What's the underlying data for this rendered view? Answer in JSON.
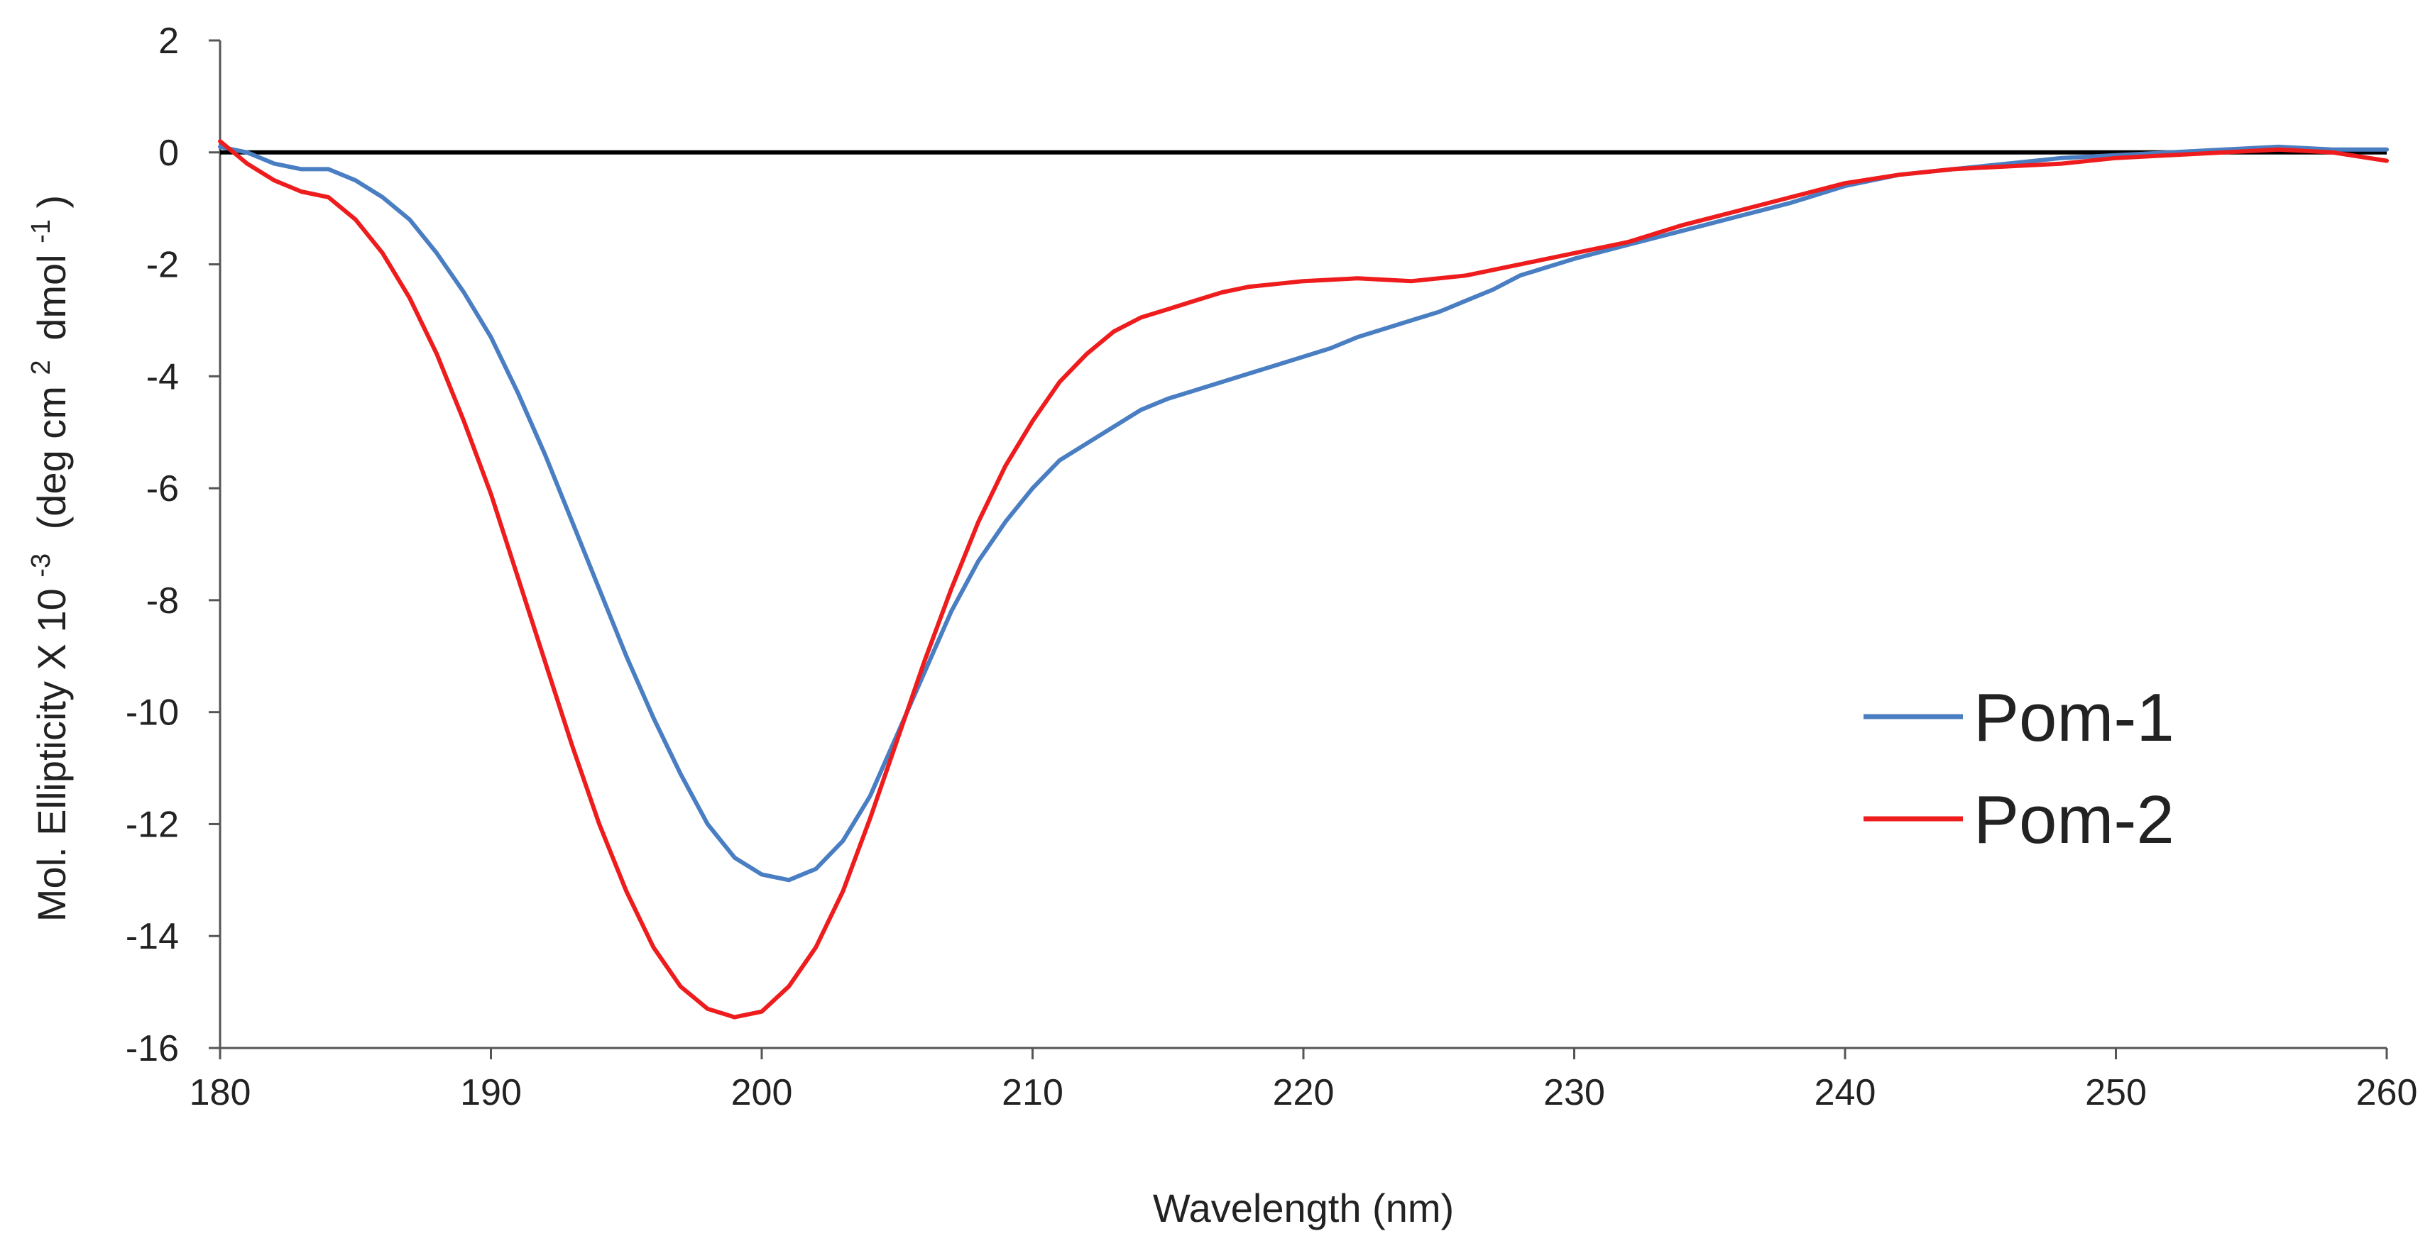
{
  "chart_data": {
    "type": "line",
    "title": "",
    "xlabel": "Wavelength (nm)",
    "ylabel": {
      "main": "Mol. Ellipticity X 10",
      "exp": "-3",
      "units_open": "(deg cm",
      "units_exp1": "2",
      "units_mid": "dmol",
      "units_exp2": "-1",
      "units_close": ")"
    },
    "xlim": [
      180,
      260
    ],
    "ylim": [
      -16,
      2
    ],
    "x_ticks": [
      180,
      190,
      200,
      210,
      220,
      230,
      240,
      250,
      260
    ],
    "y_ticks": [
      2,
      0,
      -2,
      -4,
      -6,
      -8,
      -10,
      -12,
      -14,
      -16
    ],
    "zero_line": true,
    "grid": false,
    "legend_position": "right-lower",
    "series": [
      {
        "name": "Pom-1",
        "color": "#4a7ec2",
        "points": [
          [
            180,
            0.1
          ],
          [
            181,
            0.0
          ],
          [
            182,
            -0.2
          ],
          [
            183,
            -0.3
          ],
          [
            184,
            -0.3
          ],
          [
            185,
            -0.5
          ],
          [
            186,
            -0.8
          ],
          [
            187,
            -1.2
          ],
          [
            188,
            -1.8
          ],
          [
            189,
            -2.5
          ],
          [
            190,
            -3.3
          ],
          [
            191,
            -4.3
          ],
          [
            192,
            -5.4
          ],
          [
            193,
            -6.6
          ],
          [
            194,
            -7.8
          ],
          [
            195,
            -9.0
          ],
          [
            196,
            -10.1
          ],
          [
            197,
            -11.1
          ],
          [
            198,
            -12.0
          ],
          [
            199,
            -12.6
          ],
          [
            200,
            -12.9
          ],
          [
            201,
            -13.0
          ],
          [
            202,
            -12.8
          ],
          [
            203,
            -12.3
          ],
          [
            204,
            -11.5
          ],
          [
            205,
            -10.4
          ],
          [
            206,
            -9.3
          ],
          [
            207,
            -8.2
          ],
          [
            208,
            -7.3
          ],
          [
            209,
            -6.6
          ],
          [
            210,
            -6.0
          ],
          [
            211,
            -5.5
          ],
          [
            212,
            -5.2
          ],
          [
            213,
            -4.9
          ],
          [
            214,
            -4.6
          ],
          [
            215,
            -4.4
          ],
          [
            216,
            -4.25
          ],
          [
            217,
            -4.1
          ],
          [
            218,
            -3.95
          ],
          [
            219,
            -3.8
          ],
          [
            220,
            -3.65
          ],
          [
            221,
            -3.5
          ],
          [
            222,
            -3.3
          ],
          [
            223,
            -3.15
          ],
          [
            224,
            -3.0
          ],
          [
            225,
            -2.85
          ],
          [
            226,
            -2.65
          ],
          [
            227,
            -2.45
          ],
          [
            228,
            -2.2
          ],
          [
            229,
            -2.05
          ],
          [
            230,
            -1.9
          ],
          [
            232,
            -1.65
          ],
          [
            234,
            -1.4
          ],
          [
            236,
            -1.15
          ],
          [
            238,
            -0.9
          ],
          [
            240,
            -0.6
          ],
          [
            242,
            -0.4
          ],
          [
            244,
            -0.3
          ],
          [
            246,
            -0.2
          ],
          [
            248,
            -0.1
          ],
          [
            250,
            -0.05
          ],
          [
            252,
            0.0
          ],
          [
            254,
            0.05
          ],
          [
            256,
            0.1
          ],
          [
            258,
            0.05
          ],
          [
            260,
            0.05
          ]
        ]
      },
      {
        "name": "Pom-2",
        "color": "#ee1c1c",
        "points": [
          [
            180,
            0.2
          ],
          [
            181,
            -0.2
          ],
          [
            182,
            -0.5
          ],
          [
            183,
            -0.7
          ],
          [
            184,
            -0.8
          ],
          [
            185,
            -1.2
          ],
          [
            186,
            -1.8
          ],
          [
            187,
            -2.6
          ],
          [
            188,
            -3.6
          ],
          [
            189,
            -4.8
          ],
          [
            190,
            -6.1
          ],
          [
            191,
            -7.6
          ],
          [
            192,
            -9.1
          ],
          [
            193,
            -10.6
          ],
          [
            194,
            -12.0
          ],
          [
            195,
            -13.2
          ],
          [
            196,
            -14.2
          ],
          [
            197,
            -14.9
          ],
          [
            198,
            -15.3
          ],
          [
            199,
            -15.45
          ],
          [
            200,
            -15.35
          ],
          [
            201,
            -14.9
          ],
          [
            202,
            -14.2
          ],
          [
            203,
            -13.2
          ],
          [
            204,
            -11.9
          ],
          [
            205,
            -10.5
          ],
          [
            206,
            -9.1
          ],
          [
            207,
            -7.8
          ],
          [
            208,
            -6.6
          ],
          [
            209,
            -5.6
          ],
          [
            210,
            -4.8
          ],
          [
            211,
            -4.1
          ],
          [
            212,
            -3.6
          ],
          [
            213,
            -3.2
          ],
          [
            214,
            -2.95
          ],
          [
            215,
            -2.8
          ],
          [
            216,
            -2.65
          ],
          [
            217,
            -2.5
          ],
          [
            218,
            -2.4
          ],
          [
            219,
            -2.35
          ],
          [
            220,
            -2.3
          ],
          [
            222,
            -2.25
          ],
          [
            224,
            -2.3
          ],
          [
            226,
            -2.2
          ],
          [
            228,
            -2.0
          ],
          [
            230,
            -1.8
          ],
          [
            232,
            -1.6
          ],
          [
            234,
            -1.3
          ],
          [
            236,
            -1.05
          ],
          [
            238,
            -0.8
          ],
          [
            240,
            -0.55
          ],
          [
            242,
            -0.4
          ],
          [
            244,
            -0.3
          ],
          [
            246,
            -0.25
          ],
          [
            248,
            -0.2
          ],
          [
            250,
            -0.1
          ],
          [
            252,
            -0.05
          ],
          [
            254,
            0.0
          ],
          [
            256,
            0.05
          ],
          [
            258,
            0.0
          ],
          [
            260,
            -0.15
          ]
        ]
      }
    ]
  }
}
